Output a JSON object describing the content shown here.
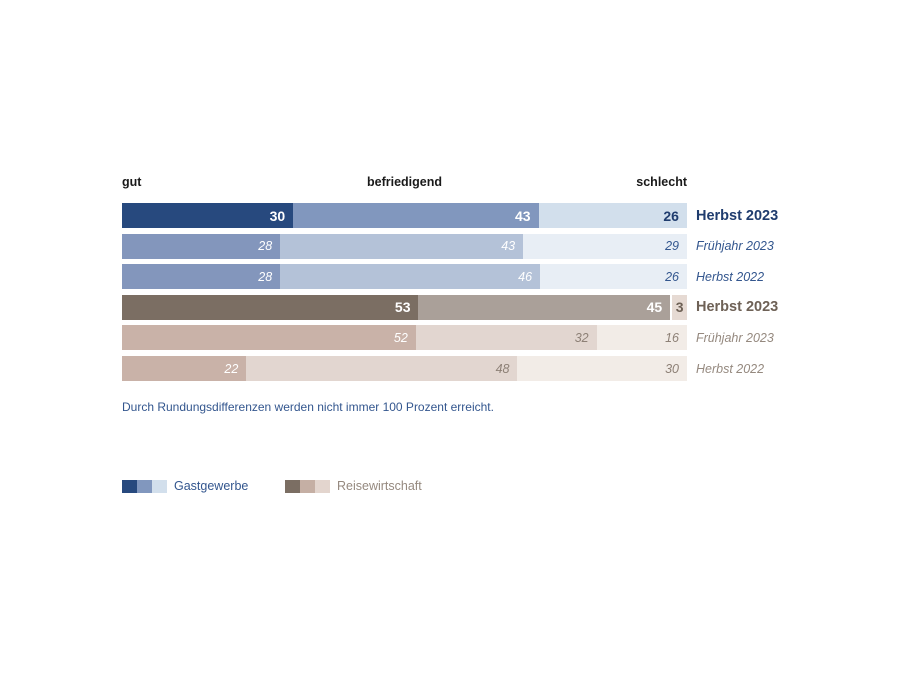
{
  "title_row": {
    "left": "gut",
    "center": "befriedigend",
    "right": "schlecht"
  },
  "chart_data": {
    "type": "bar",
    "variant": "horizontal-stacked-100-percent",
    "categories": [
      "gut",
      "befriedigend",
      "schlecht"
    ],
    "xlim": [
      0,
      100
    ],
    "value_unit": "Prozent",
    "series_groups": [
      {
        "name": "Gastgewerbe",
        "rows": [
          {
            "label": "Herbst 2023",
            "emphasis": "strong",
            "values": [
              30,
              43,
              26
            ]
          },
          {
            "label": "Frühjahr 2023",
            "emphasis": "faded",
            "values": [
              28,
              43,
              29
            ]
          },
          {
            "label": "Herbst 2022",
            "emphasis": "faded",
            "values": [
              28,
              46,
              26
            ]
          }
        ]
      },
      {
        "name": "Reisewirtschaft",
        "rows": [
          {
            "label": "Herbst 2023",
            "emphasis": "strong",
            "values": [
              53,
              45,
              3
            ],
            "white_gap_before_last": true
          },
          {
            "label": "Frühjahr 2023",
            "emphasis": "faded",
            "values": [
              52,
              32,
              16
            ]
          },
          {
            "label": "Herbst 2022",
            "emphasis": "faded",
            "values": [
              22,
              48,
              30
            ]
          }
        ]
      }
    ]
  },
  "palettes": {
    "Gastgewerbe": {
      "strong": {
        "fills": [
          "#27497E",
          "#8197BE",
          "#D2DFEC"
        ],
        "texts": [
          "#FFFFFF",
          "#FFFFFF",
          "#1F3C6E"
        ],
        "label_color": "#1F3C6E"
      },
      "faded": {
        "fills": [
          "#8396BC",
          "#B4C2D8",
          "#E8EEF5"
        ],
        "texts": [
          "#FFFFFF",
          "#FFFFFF",
          "#33568E"
        ],
        "label_color": "#33568E"
      }
    },
    "Reisewirtschaft": {
      "strong": {
        "fills": [
          "#7B6E63",
          "#AAA099",
          "#E6DAD3"
        ],
        "texts": [
          "#FFFFFF",
          "#FFFFFF",
          "#6E6156"
        ],
        "label_color": "#6E6156"
      },
      "faded": {
        "fills": [
          "#C9B2A8",
          "#E2D6D0",
          "#F2ECE7"
        ],
        "texts": [
          "#FFFFFF",
          "#8D8076",
          "#8D8076"
        ],
        "label_color": "#95897F"
      }
    }
  },
  "footnote": "Durch Rundungsdifferenzen werden nicht immer 100 Prozent erreicht.",
  "legend": {
    "items": [
      {
        "label": "Gastgewerbe",
        "swatches": [
          "#27497E",
          "#8197BE",
          "#D2DFEC"
        ],
        "label_color": "#33568E"
      },
      {
        "label": "Reisewirtschaft",
        "swatches": [
          "#7B6E63",
          "#C5AFA4",
          "#E3D5CE"
        ],
        "label_color": "#95897F"
      }
    ]
  }
}
